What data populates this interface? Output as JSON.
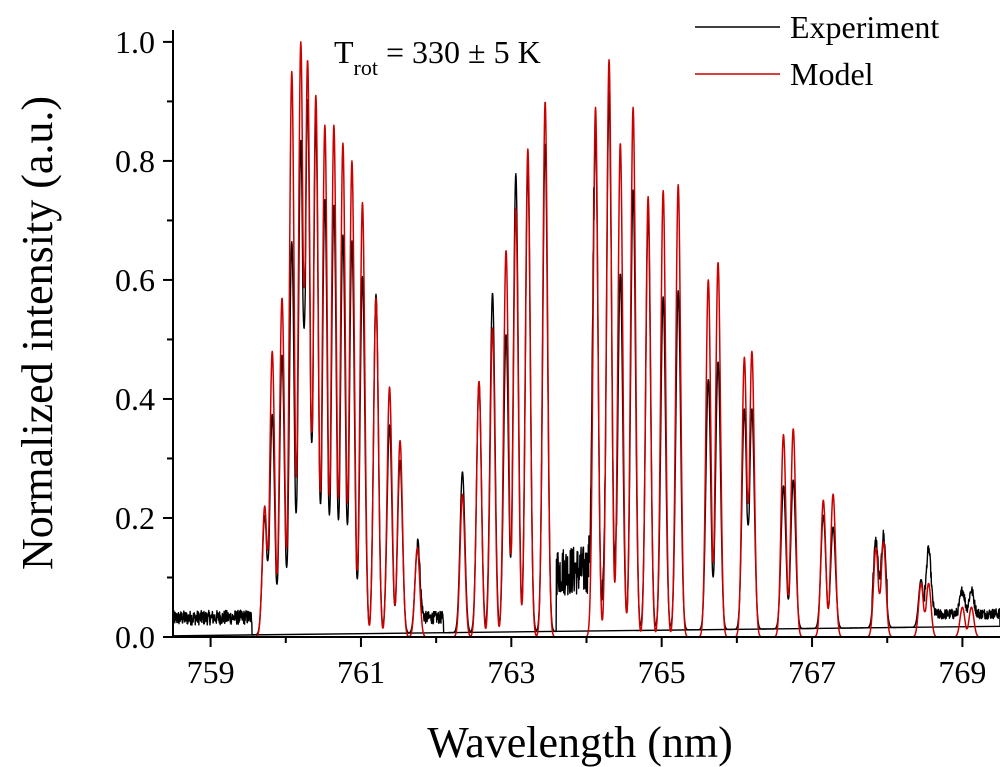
{
  "chart_data": {
    "type": "line",
    "xlabel": "Wavelength (nm)",
    "ylabel": "Normalized intensity (a.u.)",
    "xlim": [
      758.5,
      769.5
    ],
    "ylim": [
      0.0,
      1.02
    ],
    "x_ticks": [
      759,
      761,
      763,
      765,
      767,
      769
    ],
    "x_tick_labels": [
      "759",
      "761",
      "763",
      "765",
      "767",
      "769"
    ],
    "x_minor_ticks": [
      760,
      762,
      764,
      766,
      768
    ],
    "y_ticks": [
      0.0,
      0.2,
      0.4,
      0.6,
      0.8,
      1.0
    ],
    "y_tick_labels": [
      "0.0",
      "0.2",
      "0.4",
      "0.6",
      "0.8",
      "1.0"
    ],
    "y_minor_ticks": [
      0.1,
      0.3,
      0.5,
      0.7,
      0.9
    ],
    "grid": false,
    "legend_position": "top-right",
    "annotation": {
      "main": "T",
      "sub": "rot",
      "rest": " = 330 ± 5 K"
    },
    "series": [
      {
        "name": "Experiment",
        "color": "#000000",
        "baseline": [
          [
            758.5,
            0.002
          ],
          [
            769.5,
            0.018
          ]
        ],
        "noise_regions": [
          [
            758.5,
            759.55,
            0.035
          ],
          [
            761.75,
            762.1,
            0.03
          ],
          [
            763.6,
            764.1,
            0.12
          ],
          [
            764.2,
            764.4,
            0.05
          ],
          [
            767.8,
            768.0,
            0.03
          ],
          [
            768.5,
            769.5,
            0.025
          ]
        ],
        "peaks": [
          [
            759.72,
            0.2
          ],
          [
            759.82,
            0.37
          ],
          [
            759.95,
            0.47
          ],
          [
            760.08,
            0.66
          ],
          [
            760.2,
            0.83
          ],
          [
            760.29,
            0.9
          ],
          [
            760.4,
            0.86
          ],
          [
            760.52,
            0.73
          ],
          [
            760.64,
            0.72
          ],
          [
            760.76,
            0.67
          ],
          [
            760.88,
            0.66
          ],
          [
            761.02,
            0.6
          ],
          [
            761.2,
            0.57
          ],
          [
            761.38,
            0.35
          ],
          [
            761.52,
            0.29
          ],
          [
            761.75,
            0.14
          ],
          [
            762.35,
            0.27
          ],
          [
            762.57,
            0.42
          ],
          [
            762.75,
            0.57
          ],
          [
            762.93,
            0.5
          ],
          [
            763.06,
            0.77
          ],
          [
            763.22,
            0.78
          ],
          [
            763.45,
            0.82
          ],
          [
            764.12,
            0.84
          ],
          [
            764.3,
            0.86
          ],
          [
            764.45,
            0.6
          ],
          [
            764.62,
            0.74
          ],
          [
            764.82,
            0.7
          ],
          [
            765.02,
            0.56
          ],
          [
            765.22,
            0.57
          ],
          [
            765.62,
            0.42
          ],
          [
            765.75,
            0.45
          ],
          [
            766.1,
            0.37
          ],
          [
            766.2,
            0.37
          ],
          [
            766.62,
            0.24
          ],
          [
            766.75,
            0.25
          ],
          [
            767.15,
            0.19
          ],
          [
            767.28,
            0.17
          ],
          [
            767.85,
            0.12
          ],
          [
            767.95,
            0.13
          ],
          [
            768.45,
            0.08
          ],
          [
            768.55,
            0.11
          ],
          [
            769.0,
            0.04
          ],
          [
            769.12,
            0.04
          ]
        ]
      },
      {
        "name": "Model",
        "color": "#cc0000",
        "baseline": [
          [
            758.5,
            0.0
          ],
          [
            769.5,
            0.0
          ]
        ],
        "noise_regions": [],
        "peaks": [
          [
            759.72,
            0.22
          ],
          [
            759.82,
            0.48
          ],
          [
            759.95,
            0.57
          ],
          [
            760.08,
            0.95
          ],
          [
            760.2,
            1.0
          ],
          [
            760.29,
            0.97
          ],
          [
            760.4,
            0.91
          ],
          [
            760.52,
            0.86
          ],
          [
            760.64,
            0.86
          ],
          [
            760.76,
            0.83
          ],
          [
            760.88,
            0.8
          ],
          [
            761.02,
            0.73
          ],
          [
            761.2,
            0.57
          ],
          [
            761.38,
            0.42
          ],
          [
            761.52,
            0.33
          ],
          [
            761.75,
            0.15
          ],
          [
            762.35,
            0.24
          ],
          [
            762.57,
            0.43
          ],
          [
            762.75,
            0.52
          ],
          [
            762.93,
            0.65
          ],
          [
            763.06,
            0.72
          ],
          [
            763.22,
            0.82
          ],
          [
            763.45,
            0.9
          ],
          [
            764.12,
            0.89
          ],
          [
            764.3,
            0.97
          ],
          [
            764.45,
            0.83
          ],
          [
            764.62,
            0.89
          ],
          [
            764.82,
            0.74
          ],
          [
            765.02,
            0.75
          ],
          [
            765.22,
            0.76
          ],
          [
            765.62,
            0.6
          ],
          [
            765.75,
            0.63
          ],
          [
            766.1,
            0.47
          ],
          [
            766.2,
            0.48
          ],
          [
            766.62,
            0.34
          ],
          [
            766.75,
            0.35
          ],
          [
            767.15,
            0.23
          ],
          [
            767.28,
            0.24
          ],
          [
            767.85,
            0.15
          ],
          [
            767.95,
            0.16
          ],
          [
            768.45,
            0.09
          ],
          [
            768.55,
            0.09
          ],
          [
            769.0,
            0.05
          ],
          [
            769.12,
            0.05
          ]
        ]
      }
    ]
  }
}
